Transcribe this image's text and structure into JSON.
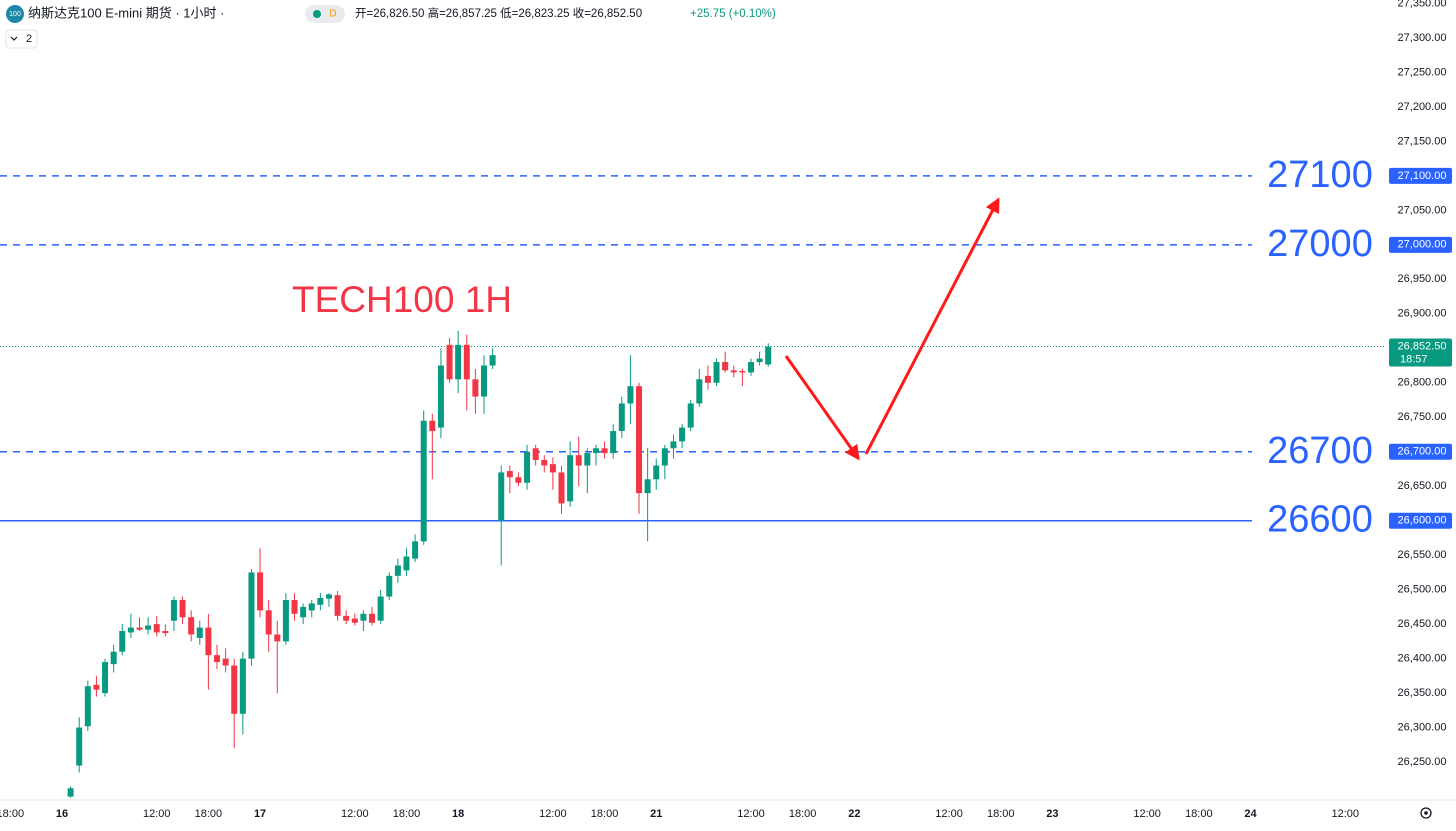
{
  "chart_data": {
    "type": "candlestick",
    "header": {
      "icon": "100",
      "title": "纳斯达克100 E-mini 期货 · 1小时 ·",
      "badge": "D",
      "ohlc": "开=26,826.50 高=26,857.25 低=26,823.25 收=26,852.50",
      "change": "+25.75 (+0.10%)",
      "indicator_count": "2"
    },
    "annotation": "TECH100 1H",
    "up_color": "#089981",
    "down_color": "#f23645",
    "level_color": "#2962ff",
    "grid": false,
    "ylim": [
      26195,
      27355
    ],
    "yticks": [
      {
        "value": 27350,
        "label": "27,350.00"
      },
      {
        "value": 27300,
        "label": "27,300.00"
      },
      {
        "value": 27250,
        "label": "27,250.00"
      },
      {
        "value": 27200,
        "label": "27,200.00"
      },
      {
        "value": 27150,
        "label": "27,150.00"
      },
      {
        "value": 27050,
        "label": "27,050.00"
      },
      {
        "value": 26950,
        "label": "26,950.00"
      },
      {
        "value": 26900,
        "label": "26,900.00"
      },
      {
        "value": 26800,
        "label": "26,800.00"
      },
      {
        "value": 26750,
        "label": "26,750.00"
      },
      {
        "value": 26650,
        "label": "26,650.00"
      },
      {
        "value": 26550,
        "label": "26,550.00"
      },
      {
        "value": 26500,
        "label": "26,500.00"
      },
      {
        "value": 26450,
        "label": "26,450.00"
      },
      {
        "value": 26400,
        "label": "26,400.00"
      },
      {
        "value": 26350,
        "label": "26,350.00"
      },
      {
        "value": 26300,
        "label": "26,300.00"
      },
      {
        "value": 26250,
        "label": "26,250.00"
      }
    ],
    "levels": [
      {
        "value": 27100,
        "label": "27,100.00",
        "dashed": true
      },
      {
        "value": 27000,
        "label": "27,000.00",
        "dashed": true
      },
      {
        "value": 26700,
        "label": "26,700.00",
        "dashed": true
      },
      {
        "value": 26600,
        "label": "26,600.00",
        "dashed": false
      }
    ],
    "last_price": {
      "value": 26852.5,
      "label": "26,852.50",
      "countdown": "18:57"
    },
    "categories": [
      "18:00",
      null,
      null,
      null,
      null,
      null,
      "16",
      null,
      null,
      null,
      null,
      null,
      null,
      null,
      null,
      null,
      null,
      "12:00",
      null,
      null,
      null,
      null,
      null,
      "18:00",
      null,
      null,
      null,
      null,
      null,
      "17",
      null,
      null,
      null,
      null,
      null,
      null,
      null,
      null,
      null,
      null,
      "12:00",
      null,
      null,
      null,
      null,
      null,
      "18:00",
      null,
      null,
      null,
      null,
      null,
      "18",
      null,
      null,
      null,
      null,
      null,
      null,
      null,
      null,
      null,
      null,
      "12:00",
      null,
      null,
      null,
      null,
      null,
      "18:00",
      null,
      null,
      null,
      null,
      null,
      "21",
      null,
      null,
      null,
      null,
      null,
      null,
      null,
      null,
      null,
      null,
      "12:00",
      null,
      null,
      null,
      null,
      null,
      "18:00",
      null,
      null,
      null,
      null,
      null,
      "22",
      null,
      null,
      null,
      null,
      null,
      null,
      null,
      null,
      null,
      null,
      "12:00",
      null,
      null,
      null,
      null,
      null,
      "18:00",
      null,
      null,
      null,
      null,
      null,
      "23",
      null,
      null,
      null,
      null,
      null,
      null,
      null,
      null,
      null,
      null,
      "12:00",
      null,
      null,
      null,
      null,
      null,
      "18:00",
      null,
      null,
      null,
      null,
      null,
      "24",
      null,
      null,
      null,
      null,
      null,
      null,
      null,
      null,
      null,
      null,
      "12:00",
      null,
      null,
      null,
      null
    ],
    "open": [
      null,
      null,
      null,
      null,
      null,
      null,
      null,
      26200,
      26245,
      26302,
      26362,
      26350,
      26392,
      26410,
      26438,
      26445,
      26442,
      26450,
      26440,
      26455,
      26485,
      26460,
      26430,
      26445,
      26405,
      26400,
      26390,
      26320,
      26400,
      26525,
      26470,
      26435,
      26425,
      26485,
      26460,
      26470,
      26478,
      26487,
      26492,
      26462,
      26458,
      26455,
      26465,
      26455,
      26490,
      26520,
      26528,
      26545,
      26570,
      26745,
      26735,
      26855,
      26805,
      26855,
      26805,
      26780,
      26825,
      26600,
      26672,
      26663,
      26655,
      26705,
      26688,
      26682,
      26670,
      26628,
      26695,
      26680,
      26698,
      26705,
      26698,
      26730,
      26770,
      26795,
      26640,
      26660,
      26680,
      26705,
      26715,
      26735,
      26770,
      26810,
      26800,
      26830,
      26818,
      26817,
      26815,
      26830,
      26826.5,
      null,
      null,
      null,
      null,
      null,
      null,
      null,
      null,
      null,
      null,
      null,
      null,
      null,
      null,
      null,
      null,
      null,
      null,
      null,
      null,
      null,
      null,
      null,
      null,
      null,
      null,
      null,
      null,
      null,
      null,
      null,
      null,
      null,
      null,
      null,
      null,
      null,
      null,
      null,
      null,
      null,
      null,
      null,
      null,
      null,
      null,
      null,
      null,
      null,
      null,
      null,
      null,
      null,
      null,
      null,
      null,
      null,
      null,
      null,
      null,
      null,
      null,
      null,
      null,
      null,
      null,
      null,
      null,
      null,
      null,
      null
    ],
    "high": [
      null,
      null,
      null,
      null,
      null,
      null,
      null,
      26215,
      26315,
      26368,
      26375,
      26400,
      26420,
      26450,
      26465,
      26460,
      26460,
      26462,
      26450,
      26490,
      26490,
      26470,
      26455,
      26465,
      26420,
      26415,
      26400,
      26410,
      26530,
      26560,
      26485,
      26455,
      26495,
      26495,
      26480,
      26485,
      26495,
      26495,
      26498,
      26470,
      26465,
      26470,
      26475,
      26500,
      26525,
      26545,
      26560,
      26580,
      26760,
      26755,
      26850,
      26865,
      26875,
      26870,
      26820,
      26840,
      26850,
      26680,
      26680,
      26670,
      26710,
      26710,
      26695,
      26692,
      26680,
      26715,
      26722,
      26705,
      26710,
      26715,
      26740,
      26780,
      26840,
      26800,
      26705,
      26690,
      26710,
      26725,
      26740,
      26775,
      26820,
      26825,
      26835,
      26845,
      26825,
      26820,
      26835,
      26845,
      26857.25,
      null,
      null,
      null,
      null,
      null,
      null,
      null,
      null,
      null,
      null,
      null,
      null,
      null,
      null,
      null,
      null,
      null,
      null,
      null,
      null,
      null,
      null,
      null,
      null,
      null,
      null,
      null,
      null,
      null,
      null,
      null,
      null,
      null,
      null,
      null,
      null,
      null,
      null,
      null,
      null,
      null,
      null,
      null,
      null,
      null,
      null,
      null,
      null,
      null,
      null,
      null,
      null,
      null,
      null,
      null,
      null,
      null,
      null,
      null,
      null,
      null,
      null,
      null,
      null,
      null,
      null,
      null,
      null,
      null,
      null,
      null
    ],
    "low": [
      null,
      null,
      null,
      null,
      null,
      null,
      null,
      26198,
      26235,
      26295,
      26345,
      26345,
      26380,
      26405,
      26430,
      26440,
      26435,
      26432,
      26432,
      26440,
      26450,
      26425,
      26420,
      26355,
      26385,
      26380,
      26270,
      26290,
      26390,
      26460,
      26410,
      26350,
      26420,
      26455,
      26450,
      26460,
      26470,
      26475,
      26455,
      26450,
      26448,
      26440,
      26448,
      26450,
      26485,
      26510,
      26520,
      26540,
      26565,
      26660,
      26720,
      26800,
      26785,
      26760,
      26755,
      26755,
      26820,
      26535,
      26640,
      26650,
      26645,
      26680,
      26670,
      26645,
      26610,
      26620,
      26650,
      26640,
      26680,
      26690,
      26690,
      26720,
      26740,
      26610,
      26570,
      26645,
      26660,
      26690,
      26705,
      26730,
      26765,
      26790,
      26795,
      26815,
      26808,
      26795,
      26810,
      26825,
      26823.25,
      null,
      null,
      null,
      null,
      null,
      null,
      null,
      null,
      null,
      null,
      null,
      null,
      null,
      null,
      null,
      null,
      null,
      null,
      null,
      null,
      null,
      null,
      null,
      null,
      null,
      null,
      null,
      null,
      null,
      null,
      null,
      null,
      null,
      null,
      null,
      null,
      null,
      null,
      null,
      null,
      null,
      null,
      null,
      null,
      null,
      null,
      null,
      null,
      null,
      null,
      null,
      null,
      null,
      null,
      null,
      null,
      null,
      null,
      null,
      null,
      null,
      null,
      null,
      null,
      null,
      null,
      null,
      null,
      null,
      null,
      null
    ],
    "close": [
      null,
      null,
      null,
      null,
      null,
      null,
      null,
      26212,
      26300,
      26360,
      26355,
      26395,
      26410,
      26440,
      26445,
      26442,
      26448,
      26438,
      26437,
      26485,
      26460,
      26435,
      26445,
      26405,
      26395,
      26390,
      26320,
      26400,
      26525,
      26470,
      26435,
      26425,
      26485,
      26465,
      26475,
      26480,
      26488,
      26493,
      26462,
      26455,
      26452,
      26465,
      26452,
      26490,
      26520,
      26535,
      26548,
      26570,
      26745,
      26730,
      26825,
      26805,
      26855,
      26805,
      26780,
      26825,
      26840,
      26670,
      26663,
      26655,
      26700,
      26688,
      26680,
      26670,
      26625,
      26695,
      26680,
      26698,
      26705,
      26698,
      26730,
      26770,
      26795,
      26640,
      26660,
      26680,
      26705,
      26715,
      26735,
      26770,
      26805,
      26800,
      26830,
      26818,
      26815,
      26815,
      26830,
      26835,
      26852.5,
      null,
      null,
      null,
      null,
      null,
      null,
      null,
      null,
      null,
      null,
      null,
      null,
      null,
      null,
      null,
      null,
      null,
      null,
      null,
      null,
      null,
      null,
      null,
      null,
      null,
      null,
      null,
      null,
      null,
      null,
      null,
      null,
      null,
      null,
      null,
      null,
      null,
      null,
      null,
      null,
      null,
      null,
      null,
      null,
      null,
      null,
      null,
      null,
      null,
      null,
      null,
      null,
      null,
      null,
      null,
      null,
      null,
      null,
      null,
      null,
      null,
      null,
      null,
      null,
      null,
      null,
      null,
      null,
      null,
      null,
      null
    ]
  }
}
